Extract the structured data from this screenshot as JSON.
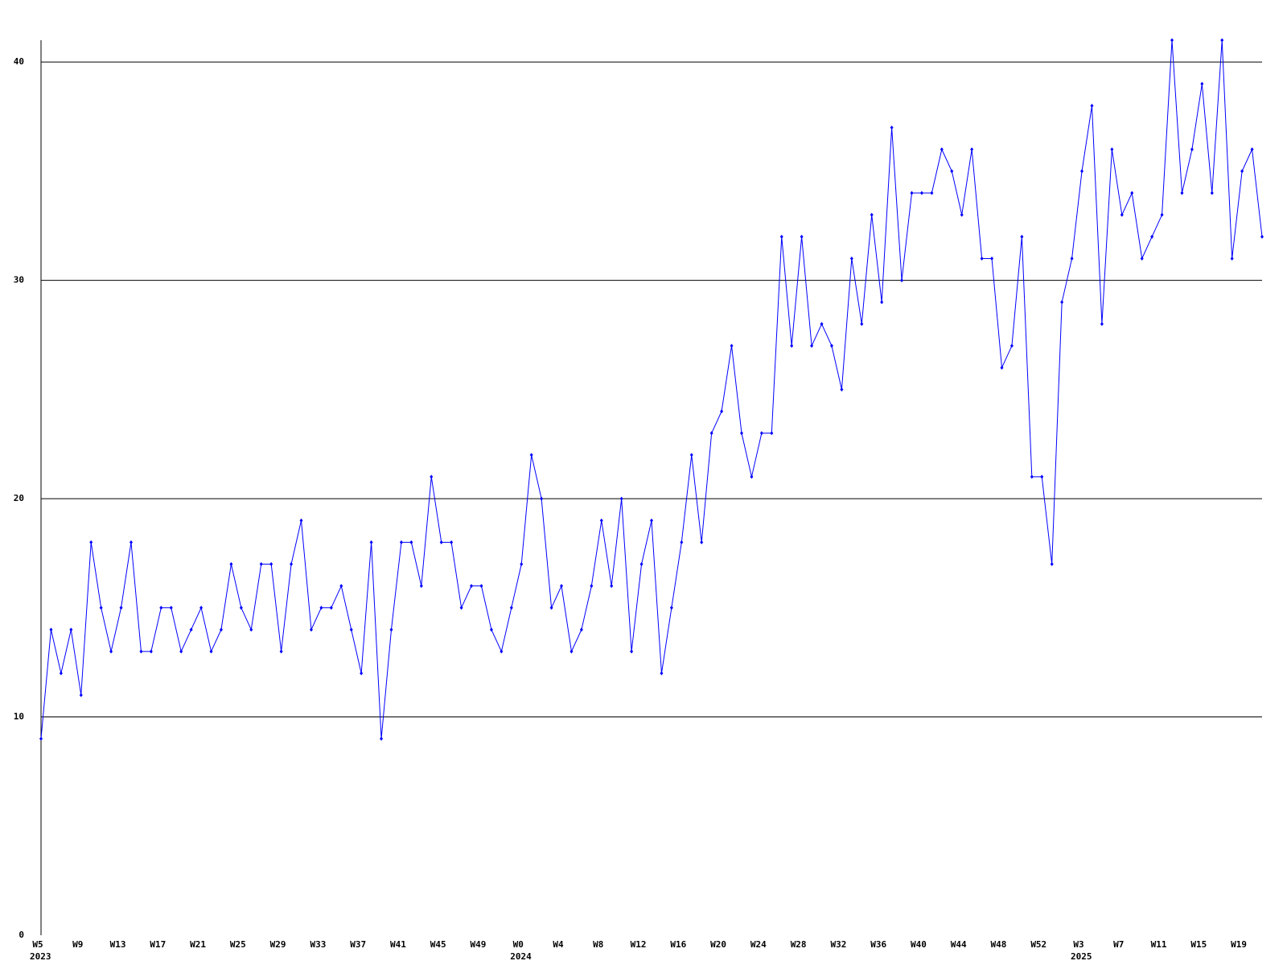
{
  "chart_data": {
    "type": "line",
    "categories": [
      "W5",
      null,
      null,
      null,
      "W9",
      null,
      null,
      null,
      "W13",
      null,
      null,
      null,
      "W17",
      null,
      null,
      null,
      "W21",
      null,
      null,
      null,
      "W25",
      null,
      null,
      null,
      "W29",
      null,
      null,
      null,
      "W33",
      null,
      null,
      null,
      "W37",
      null,
      null,
      null,
      "W41",
      null,
      null,
      null,
      "W45",
      null,
      null,
      null,
      "W49",
      null,
      null,
      null,
      "W0",
      null,
      null,
      null,
      "W4",
      null,
      null,
      null,
      "W8",
      null,
      null,
      null,
      "W12",
      null,
      null,
      null,
      "W16",
      null,
      null,
      null,
      "W20",
      null,
      null,
      null,
      "W24",
      null,
      null,
      null,
      "W28",
      null,
      null,
      null,
      "W32",
      null,
      null,
      null,
      "W36",
      null,
      null,
      null,
      "W40",
      null,
      null,
      null,
      "W44",
      null,
      null,
      null,
      "W48",
      null,
      null,
      null,
      "W52",
      null,
      null,
      null,
      "W3",
      null,
      null,
      null,
      "W7",
      null,
      null,
      null,
      "W11",
      null,
      null,
      null,
      "W15",
      null,
      null,
      null,
      "W19",
      null,
      null
    ],
    "year_labels": [
      "2023",
      null,
      null,
      null,
      null,
      null,
      null,
      null,
      null,
      null,
      null,
      null,
      null,
      null,
      null,
      null,
      null,
      null,
      null,
      null,
      null,
      null,
      null,
      null,
      null,
      null,
      null,
      null,
      null,
      null,
      null,
      null,
      null,
      null,
      null,
      null,
      null,
      null,
      null,
      null,
      null,
      null,
      null,
      null,
      null,
      null,
      null,
      null,
      "2024",
      null,
      null,
      null,
      null,
      null,
      null,
      null,
      null,
      null,
      null,
      null,
      null,
      null,
      null,
      null,
      null,
      null,
      null,
      null,
      null,
      null,
      null,
      null,
      null,
      null,
      null,
      null,
      null,
      null,
      null,
      null,
      null,
      null,
      null,
      null,
      null,
      null,
      null,
      null,
      null,
      null,
      null,
      null,
      null,
      null,
      null,
      null,
      null,
      null,
      null,
      null,
      null,
      null,
      null,
      null,
      "2025",
      null,
      null,
      null,
      null,
      null,
      null,
      null,
      null,
      null,
      null,
      null,
      null,
      null,
      null,
      null,
      null,
      null,
      null
    ],
    "series": [
      {
        "color": "#0000ff",
        "values": [
          9,
          14,
          12,
          14,
          11,
          18,
          15,
          13,
          15,
          18,
          13,
          13,
          15,
          15,
          13,
          14,
          15,
          13,
          14,
          17,
          15,
          14,
          17,
          17,
          13,
          17,
          19,
          14,
          15,
          15,
          16,
          14,
          12,
          18,
          9,
          14,
          18,
          18,
          16,
          21,
          18,
          18,
          15,
          16,
          16,
          14,
          13,
          15,
          17,
          22,
          20,
          15,
          16,
          13,
          14,
          16,
          19,
          16,
          20,
          13,
          17,
          19,
          12,
          15,
          18,
          22,
          18,
          23,
          24,
          27,
          23,
          21,
          23,
          23,
          32,
          27,
          32,
          27,
          28,
          27,
          25,
          31,
          28,
          33,
          29,
          37,
          30,
          34,
          34,
          34,
          36,
          35,
          33,
          36,
          31,
          31,
          26,
          27,
          32,
          21,
          21,
          17,
          29,
          31,
          35,
          38,
          28,
          36,
          33,
          34,
          31,
          32,
          33,
          41,
          34,
          36,
          39,
          34,
          41,
          31,
          35,
          36,
          32
        ]
      }
    ],
    "ylim": [
      0,
      41
    ],
    "yticks": [
      0,
      10,
      20,
      30,
      40
    ],
    "grid": true
  }
}
